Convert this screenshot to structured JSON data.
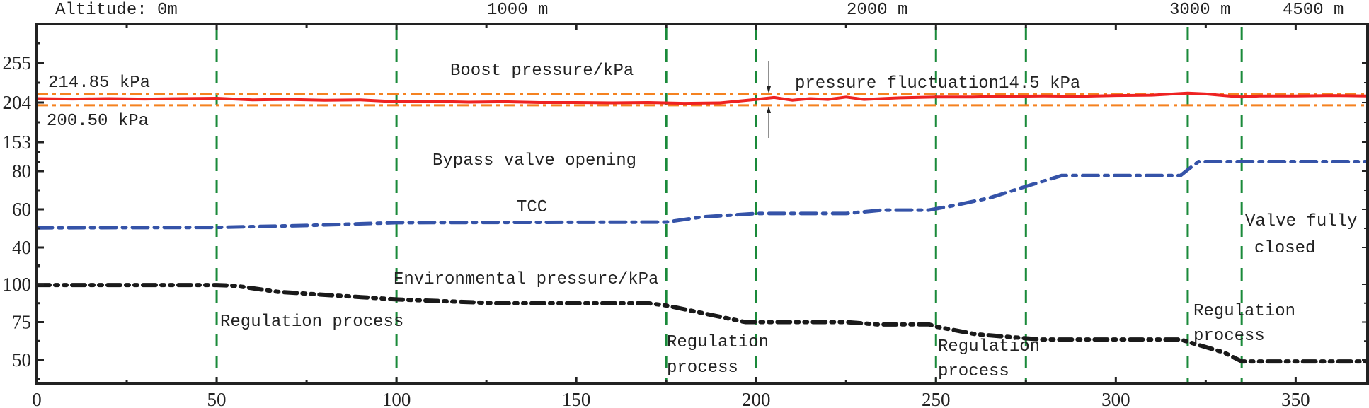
{
  "chart_data": {
    "type": "line",
    "xlim": [
      0,
      370
    ],
    "x_ticks": [
      0,
      50,
      100,
      150,
      200,
      250,
      300,
      350
    ],
    "grid": false,
    "top_labels": [
      "Altitude: 0m",
      "1000 m",
      "2000 m",
      "3000 m",
      "4500 m"
    ],
    "panels": {
      "boost": {
        "y_ticks": [
          255,
          204,
          153
        ]
      },
      "tcc": {
        "y_ticks": [
          80,
          60,
          40
        ]
      },
      "env": {
        "y_ticks": [
          100,
          75,
          50
        ]
      }
    },
    "vertical_markers": [
      50,
      100,
      175,
      200,
      250,
      275,
      320,
      335
    ],
    "reference_lines": [
      {
        "value": 214.85,
        "label": "214.85 kPa"
      },
      {
        "value": 200.5,
        "label": "200.50 kPa"
      }
    ],
    "series": [
      {
        "panel": "boost",
        "color": "#ee2222",
        "x": [
          0,
          10,
          20,
          30,
          40,
          50,
          60,
          70,
          80,
          90,
          100,
          110,
          120,
          130,
          140,
          150,
          160,
          170,
          180,
          190,
          200,
          205,
          210,
          215,
          220,
          225,
          230,
          240,
          250,
          260,
          270,
          280,
          290,
          300,
          310,
          320,
          325,
          330,
          335,
          340,
          350,
          360,
          370
        ],
        "y": [
          209,
          208.5,
          209,
          208.5,
          209,
          209.5,
          207.5,
          208,
          207,
          207.5,
          205,
          205.5,
          204.5,
          205,
          204,
          204,
          203.5,
          204,
          203,
          203.5,
          208,
          210.5,
          207,
          209,
          208,
          211,
          208,
          210,
          211,
          211,
          212,
          212.5,
          212,
          213,
          213.5,
          216,
          215,
          213,
          211,
          212.5,
          212.5,
          213,
          212.5
        ]
      },
      {
        "panel": "tcc",
        "color": "#3553a8",
        "x": [
          0,
          50,
          75,
          100,
          175,
          185,
          200,
          225,
          235,
          248,
          255,
          265,
          275,
          285,
          318,
          320,
          323,
          370
        ],
        "y": [
          50.3,
          50.5,
          51.5,
          53,
          53.3,
          56,
          57.8,
          57.8,
          59.6,
          59.6,
          62,
          66,
          72,
          77.7,
          77.7,
          80.7,
          85,
          85
        ]
      },
      {
        "panel": "env",
        "color": "#1a1a1a",
        "x": [
          0,
          50,
          55,
          67,
          100,
          128,
          170,
          175,
          185,
          197,
          225,
          234,
          248,
          250,
          261,
          279,
          318,
          320,
          330,
          335,
          370
        ],
        "y": [
          99.5,
          99.5,
          99,
          95,
          90,
          87.5,
          87.5,
          86,
          81,
          75,
          75,
          73.4,
          73.5,
          72,
          67,
          63.5,
          63.5,
          62,
          55,
          49,
          49
        ]
      }
    ],
    "fluctuation_marker": {
      "x": 203.5,
      "label": "pressure fluctuation14.5 kPa"
    },
    "annotations": {
      "boost": "Boost pressure/kPa",
      "bypass": "Bypass valve opening",
      "tcc": "TCC",
      "env": "Environmental pressure/kPa",
      "reg1": "Regulation process",
      "reg2a": "Regulation",
      "reg2b": "process",
      "reg3a": "Regulation",
      "reg3b": "process",
      "reg4a": "Regulation",
      "reg4b": "process",
      "valve_a": "Valve fully",
      "valve_b": "closed"
    },
    "colors": {
      "boost": "#ee2222",
      "limits": "#f58220",
      "tcc": "#3553a8",
      "env": "#1a1a1a",
      "markers": "#1a8a3a"
    }
  }
}
